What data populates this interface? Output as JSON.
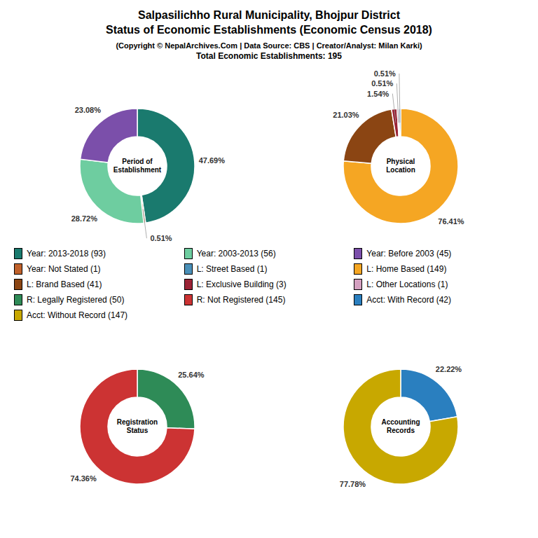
{
  "title": "Salpasilichho Rural Municipality, Bhojpur District\nStatus of Economic Establishments (Economic Census 2018)",
  "subtitle": "(Copyright © NepalArchives.Com | Data Source: CBS | Creator/Analyst: Milan Karki)\nTotal Economic Establishments: 195",
  "legend_items": [
    {
      "label": "Year: 2013-2018 (93)",
      "color": "#1a7a6e"
    },
    {
      "label": "Year: 2003-2013 (56)",
      "color": "#6ecda0"
    },
    {
      "label": "Year: Before 2003 (45)",
      "color": "#7b4faa"
    },
    {
      "label": "Year: Not Stated (1)",
      "color": "#c0612b"
    },
    {
      "label": "L: Street Based (1)",
      "color": "#4a90b8"
    },
    {
      "label": "L: Home Based (149)",
      "color": "#f5a623"
    },
    {
      "label": "L: Brand Based (41)",
      "color": "#8B4513"
    },
    {
      "label": "L: Exclusive Building (3)",
      "color": "#9B2335"
    },
    {
      "label": "L: Other Locations (1)",
      "color": "#d4a0c0"
    },
    {
      "label": "R: Legally Registered (50)",
      "color": "#2e8b57"
    },
    {
      "label": "R: Not Registered (145)",
      "color": "#cc3333"
    },
    {
      "label": "Acct: With Record (42)",
      "color": "#2a7fbf"
    },
    {
      "label": "Acct: Without Record (147)",
      "color": "#c8a800"
    }
  ],
  "chart_data": [
    {
      "type": "pie",
      "title": "Period of\nEstablishment",
      "values": [
        47.69,
        0.51,
        28.72,
        23.08
      ],
      "value_labels": [
        "47.69%",
        "0.51%",
        "28.72%",
        "23.08%"
      ],
      "colors": [
        "#1a7a6e",
        "#c0612b",
        "#6ecda0",
        "#7b4faa"
      ],
      "data_labels": true
    },
    {
      "type": "pie",
      "title": "Physical\nLocation",
      "values": [
        76.41,
        21.03,
        1.54,
        0.51,
        0.51
      ],
      "value_labels": [
        "76.41%",
        "21.03%",
        "1.54%",
        "0.51%",
        "0.51%"
      ],
      "colors": [
        "#f5a623",
        "#8B4513",
        "#9B2335",
        "#d4a0c0",
        "#4a90b8"
      ],
      "data_labels": true
    },
    {
      "type": "pie",
      "title": "Registration\nStatus",
      "values": [
        25.64,
        74.36
      ],
      "value_labels": [
        "25.64%",
        "74.36%"
      ],
      "colors": [
        "#2e8b57",
        "#cc3333"
      ],
      "data_labels": true
    },
    {
      "type": "pie",
      "title": "Accounting\nRecords",
      "values": [
        22.22,
        77.78
      ],
      "value_labels": [
        "22.22%",
        "77.78%"
      ],
      "colors": [
        "#2a7fbf",
        "#c8a800"
      ],
      "data_labels": true
    }
  ]
}
